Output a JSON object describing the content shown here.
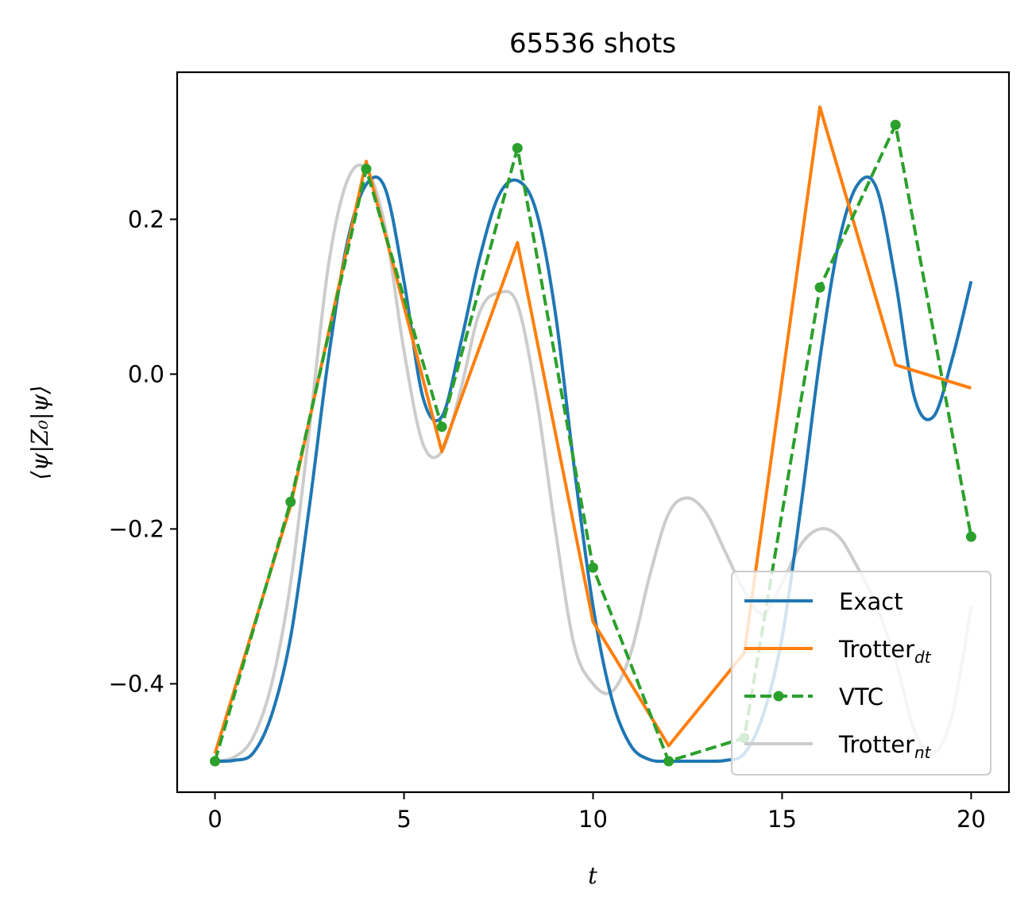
{
  "chart_data": {
    "type": "line",
    "title": "65536 shots",
    "xlabel": "t",
    "ylabel": "⟨ψ|Z₀|ψ⟩",
    "xlim": [
      -1,
      21
    ],
    "ylim": [
      -0.54,
      0.39
    ],
    "xticks": [
      0,
      5,
      10,
      15,
      20
    ],
    "yticks": [
      -0.4,
      -0.2,
      0.0,
      0.2
    ],
    "xtick_labels": [
      "0",
      "5",
      "10",
      "15",
      "20"
    ],
    "ytick_labels": [
      "−0.4",
      "−0.2",
      "0.0",
      "0.2"
    ],
    "grid": false,
    "legend_position": "lower-right",
    "series": [
      {
        "name": "Exact",
        "subscript": "",
        "color": "#1f77b4",
        "style": "solid",
        "x": [
          0,
          0.5,
          1,
          1.5,
          2,
          2.5,
          3,
          3.5,
          4,
          4.5,
          5,
          5.5,
          6,
          6.5,
          7,
          7.5,
          8,
          8.5,
          9,
          9.5,
          10,
          10.5,
          11,
          11.5,
          12,
          12.5,
          13,
          13.5,
          14,
          14.5,
          15,
          15.5,
          16,
          16.5,
          17,
          17.5,
          18,
          18.5,
          19,
          19.5,
          20
        ],
        "y": [
          -0.5,
          -0.499,
          -0.49,
          -0.44,
          -0.34,
          -0.17,
          0.02,
          0.17,
          0.245,
          0.24,
          0.12,
          -0.03,
          -0.055,
          0.04,
          0.15,
          0.23,
          0.25,
          0.21,
          0.08,
          -0.12,
          -0.3,
          -0.42,
          -0.48,
          -0.498,
          -0.5,
          -0.5,
          -0.5,
          -0.499,
          -0.49,
          -0.44,
          -0.34,
          -0.17,
          0.02,
          0.17,
          0.245,
          0.24,
          0.12,
          -0.03,
          -0.055,
          0.02,
          0.12
        ]
      },
      {
        "name": "Trotter",
        "subscript": "dt",
        "color": "#ff7f0e",
        "style": "solid",
        "x": [
          0,
          2,
          4,
          6,
          8,
          10,
          12,
          14,
          16,
          18,
          20
        ],
        "y": [
          -0.49,
          -0.17,
          0.275,
          -0.1,
          0.17,
          -0.32,
          -0.48,
          -0.36,
          0.345,
          0.012,
          -0.018
        ]
      },
      {
        "name": "VTC",
        "subscript": "",
        "color": "#2ca02c",
        "style": "dashed-dot-marker",
        "x": [
          0,
          2,
          4,
          6,
          8,
          10,
          12,
          14,
          16,
          18,
          20
        ],
        "y": [
          -0.5,
          -0.165,
          0.265,
          -0.068,
          0.292,
          -0.25,
          -0.5,
          -0.47,
          0.112,
          0.322,
          -0.21
        ]
      },
      {
        "name": "Trotter",
        "subscript": "nt",
        "color": "#cccccc",
        "style": "solid",
        "x": [
          0,
          0.5,
          1,
          1.5,
          2,
          2.5,
          3,
          3.5,
          4,
          4.5,
          5,
          5.5,
          6,
          6.5,
          7,
          7.5,
          8,
          8.5,
          9,
          9.5,
          10,
          10.5,
          11,
          11.5,
          12,
          12.5,
          13,
          13.5,
          14,
          14.5,
          15,
          15.5,
          16,
          16.5,
          17,
          17.5,
          18,
          18.5,
          19,
          19.5,
          20
        ],
        "y": [
          -0.5,
          -0.495,
          -0.47,
          -0.4,
          -0.27,
          -0.07,
          0.14,
          0.25,
          0.265,
          0.19,
          0.03,
          -0.09,
          -0.1,
          -0.02,
          0.08,
          0.105,
          0.09,
          -0.03,
          -0.2,
          -0.35,
          -0.4,
          -0.41,
          -0.36,
          -0.26,
          -0.18,
          -0.16,
          -0.18,
          -0.23,
          -0.28,
          -0.31,
          -0.27,
          -0.22,
          -0.2,
          -0.21,
          -0.25,
          -0.3,
          -0.37,
          -0.46,
          -0.49,
          -0.44,
          -0.3
        ]
      }
    ]
  }
}
